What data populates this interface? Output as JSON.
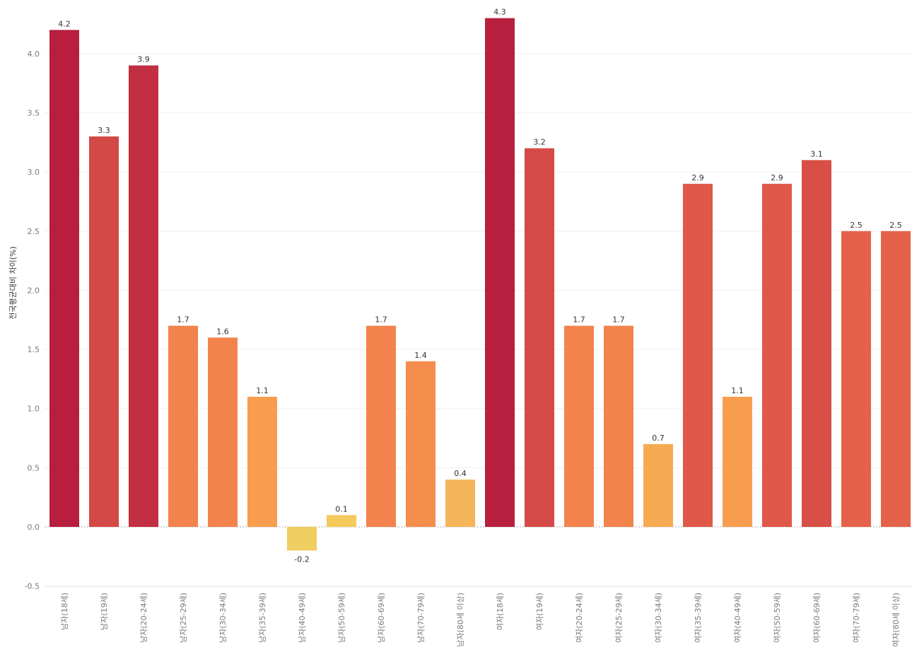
{
  "chart_data": {
    "type": "bar",
    "title": "",
    "xlabel": "",
    "ylabel": "전국평균대비 차이(%)",
    "ylim": [
      -0.5,
      4.3
    ],
    "yticks": [
      "-0.5",
      "0.0",
      "0.5",
      "1.0",
      "1.5",
      "2.0",
      "2.5",
      "3.0",
      "3.5",
      "4.0"
    ],
    "ytick_values": [
      -0.5,
      0.0,
      0.5,
      1.0,
      1.5,
      2.0,
      2.5,
      3.0,
      3.5,
      4.0
    ],
    "categories": [
      "남자(18세)",
      "남자(19세)",
      "남자(20-24세)",
      "남자(25-29세)",
      "남자(30-34세)",
      "남자(35-39세)",
      "남자(40-49세)",
      "남자(50-59세)",
      "남자(60-69세)",
      "남자(70-79세)",
      "남자(80세 이상)",
      "여자(18세)",
      "여자(19세)",
      "여자(20-24세)",
      "여자(25-29세)",
      "여자(30-34세)",
      "여자(35-39세)",
      "여자(40-49세)",
      "여자(50-59세)",
      "여자(60-69세)",
      "여자(70-79세)",
      "여자(80세 이상)"
    ],
    "values": [
      4.2,
      3.3,
      3.9,
      1.7,
      1.6,
      1.1,
      -0.2,
      0.1,
      1.7,
      1.4,
      0.4,
      4.3,
      3.2,
      1.7,
      1.7,
      0.7,
      2.9,
      1.1,
      2.9,
      3.1,
      2.5,
      2.5
    ],
    "value_labels": [
      "4.2",
      "3.3",
      "3.9",
      "1.7",
      "1.6",
      "1.1",
      "-0.2",
      "0.1",
      "1.7",
      "1.4",
      "0.4",
      "4.3",
      "3.2",
      "1.7",
      "1.7",
      "0.7",
      "2.9",
      "1.1",
      "2.9",
      "3.1",
      "2.5",
      "2.5"
    ],
    "colors": [
      "#b81f3f",
      "#d34946",
      "#c22f42",
      "#f3834c",
      "#f3834c",
      "#f89c4e",
      "#f1ce62",
      "#f5c95c",
      "#f3834c",
      "#f58e4d",
      "#f5b65a",
      "#b81f3f",
      "#d54a46",
      "#f3834c",
      "#f3834c",
      "#f6aa53",
      "#df5849",
      "#f89c4e",
      "#df5849",
      "#d84f47",
      "#e4624a",
      "#e4624a"
    ],
    "grid": true
  }
}
